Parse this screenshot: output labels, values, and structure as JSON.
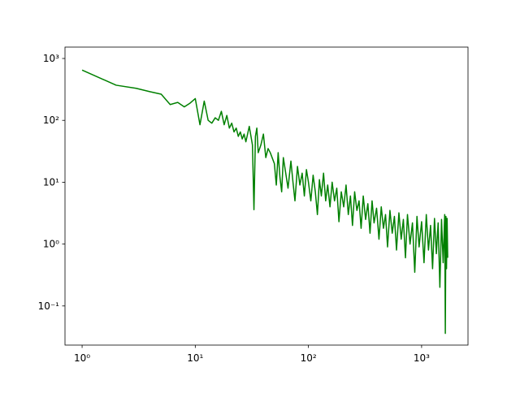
{
  "chart_data": {
    "type": "line",
    "log_x": true,
    "log_y": true,
    "grid": false,
    "xlim": [
      0.706,
      2570
    ],
    "ylim": [
      0.0233,
      1528
    ],
    "xticks": [
      {
        "value": 1,
        "label": "10⁰"
      },
      {
        "value": 10,
        "label": "10¹"
      },
      {
        "value": 100,
        "label": "10²"
      },
      {
        "value": 1000,
        "label": "10³"
      }
    ],
    "yticks": [
      {
        "value": 0.1,
        "label": "10⁻¹"
      },
      {
        "value": 1,
        "label": "10⁰"
      },
      {
        "value": 10,
        "label": "10¹"
      },
      {
        "value": 100,
        "label": "10²"
      },
      {
        "value": 1000,
        "label": "10³"
      }
    ],
    "x": [
      1,
      2,
      3,
      4,
      5,
      6,
      7,
      8,
      9,
      10,
      11,
      12,
      13,
      14,
      15,
      16,
      17,
      18,
      19,
      20,
      21,
      22,
      23,
      24,
      25,
      26,
      27,
      28,
      30,
      32,
      33,
      34,
      35,
      36,
      38,
      40,
      42,
      44,
      46,
      50,
      52,
      54,
      56,
      58,
      60,
      63,
      66,
      70,
      73,
      76,
      80,
      84,
      88,
      92,
      96,
      100,
      105,
      110,
      115,
      120,
      125,
      130,
      136,
      142,
      148,
      155,
      162,
      170,
      178,
      186,
      195,
      205,
      215,
      225,
      235,
      245,
      256,
      268,
      280,
      292,
      305,
      320,
      335,
      350,
      365,
      380,
      400,
      420,
      440,
      460,
      480,
      500,
      525,
      550,
      575,
      600,
      630,
      660,
      690,
      720,
      750,
      790,
      830,
      870,
      910,
      950,
      1000,
      1050,
      1100,
      1150,
      1200,
      1250,
      1300,
      1350,
      1400,
      1450,
      1500,
      1550,
      1600,
      1620,
      1640,
      1660,
      1680,
      1700
    ],
    "series": [
      {
        "color": "#008000",
        "values": [
          650,
          370,
          330,
          290,
          265,
          180,
          195,
          165,
          190,
          225,
          85,
          205,
          100,
          90,
          110,
          100,
          140,
          85,
          120,
          75,
          90,
          65,
          75,
          55,
          65,
          50,
          60,
          45,
          80,
          40,
          3.6,
          55,
          75,
          30,
          40,
          60,
          25,
          35,
          30,
          20,
          9,
          30,
          12,
          7,
          25,
          14,
          8,
          22,
          10,
          5,
          18,
          9,
          14,
          6,
          16,
          10,
          5,
          13,
          7,
          3,
          11,
          6,
          14,
          5,
          9,
          4,
          10,
          5,
          8,
          2.3,
          7,
          4,
          9,
          3,
          6,
          2,
          7,
          3.5,
          5,
          1.8,
          6,
          2.5,
          4.5,
          1.5,
          5,
          2.2,
          3.8,
          1.2,
          4,
          1.8,
          3,
          0.9,
          3.5,
          1.5,
          2.8,
          0.8,
          3.2,
          1.2,
          2.5,
          0.6,
          3,
          1,
          2.2,
          0.35,
          2.8,
          0.9,
          2.3,
          0.5,
          3,
          0.8,
          2,
          0.4,
          2.6,
          0.7,
          2.2,
          0.2,
          2.5,
          0.5,
          3,
          0.036,
          2.8,
          0.4,
          2.6,
          0.6
        ]
      }
    ]
  }
}
